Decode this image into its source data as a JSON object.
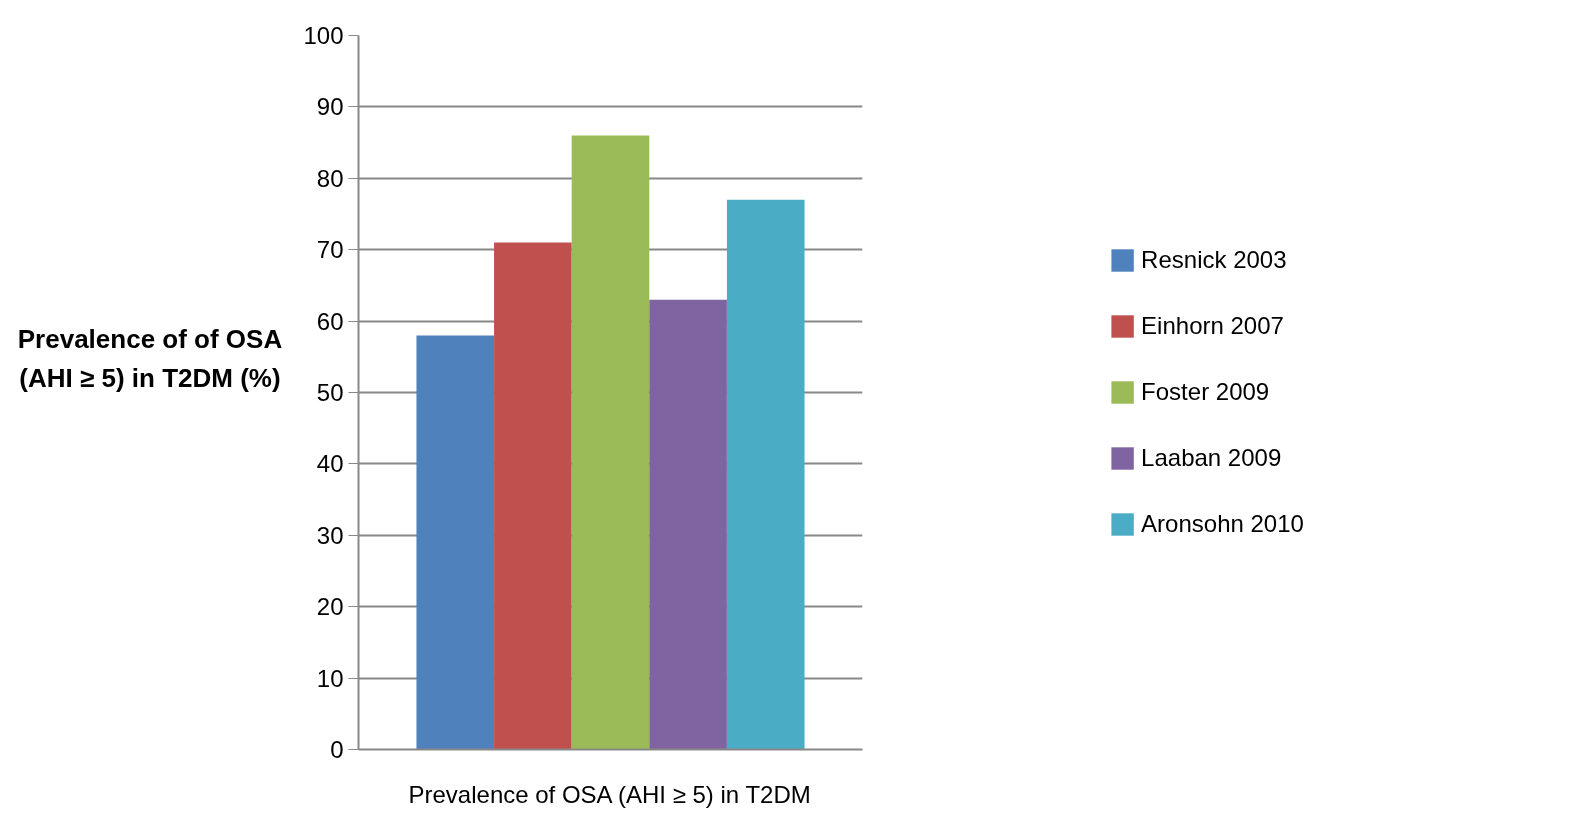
{
  "chart_data": {
    "type": "bar",
    "ylabel": "Prevalence of of OSA (AHI ≥ 5) in T2DM (%)",
    "categories": [
      "Prevalence of OSA (AHI ≥ 5) in T2DM"
    ],
    "series": [
      {
        "name": "Resnick 2003",
        "color": "#4f81bd",
        "values": [
          58
        ]
      },
      {
        "name": "Einhorn 2007",
        "color": "#c0504d",
        "values": [
          71
        ]
      },
      {
        "name": "Foster 2009",
        "color": "#9bbb59",
        "values": [
          86
        ]
      },
      {
        "name": "Laaban 2009",
        "color": "#8064a2",
        "values": [
          63
        ]
      },
      {
        "name": "Aronsohn 2010",
        "color": "#4bacc6",
        "values": [
          77
        ]
      }
    ],
    "ylim": [
      0,
      100
    ],
    "yticks": [
      0,
      10,
      20,
      30,
      40,
      50,
      60,
      70,
      80,
      90,
      100
    ],
    "grid": "y",
    "legend": "right"
  }
}
